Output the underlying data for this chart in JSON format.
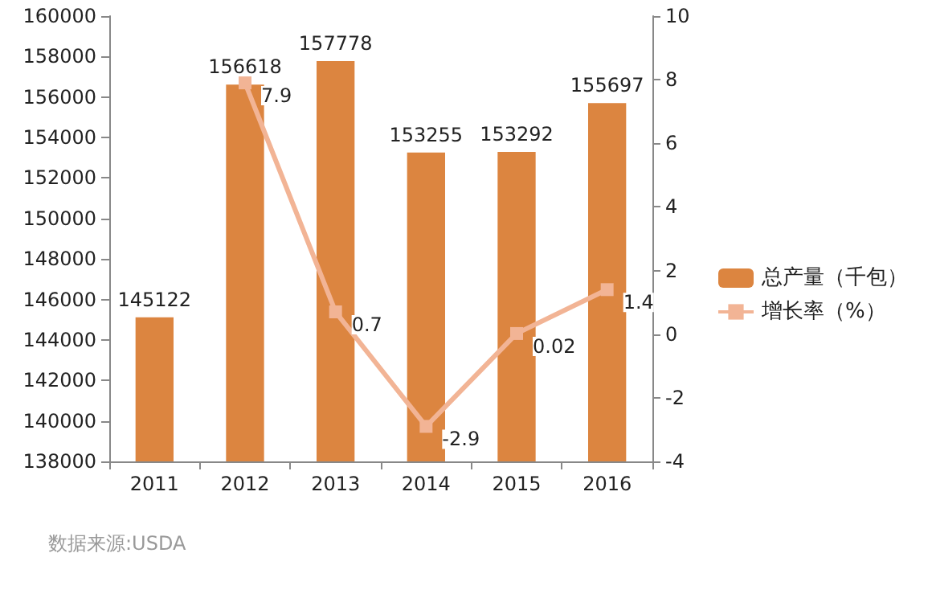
{
  "chart_data": {
    "type": "bar",
    "categories": [
      "2011",
      "2012",
      "2013",
      "2014",
      "2015",
      "2016"
    ],
    "series": [
      {
        "name": "总产量（千包）",
        "color": "#dc8540",
        "values": [
          145122,
          156618,
          157778,
          153255,
          153292,
          155697
        ]
      },
      {
        "name": "增长率（%）",
        "type": "line",
        "axis": "y2",
        "color": "#f2b495",
        "marker": "square",
        "values": [
          null,
          7.9,
          0.7,
          -2.9,
          0.02,
          1.4
        ]
      }
    ],
    "ylim": [
      138000,
      160000
    ],
    "yticks": [
      138000,
      140000,
      142000,
      144000,
      146000,
      148000,
      150000,
      152000,
      154000,
      156000,
      158000,
      160000
    ],
    "y2lim": [
      -4,
      10
    ],
    "y2ticks": [
      -4,
      -2,
      0,
      2,
      4,
      6,
      8,
      10
    ],
    "data_labels": true,
    "legend": "right",
    "grid": false,
    "annotations": [
      "数据来源:USDA"
    ]
  }
}
